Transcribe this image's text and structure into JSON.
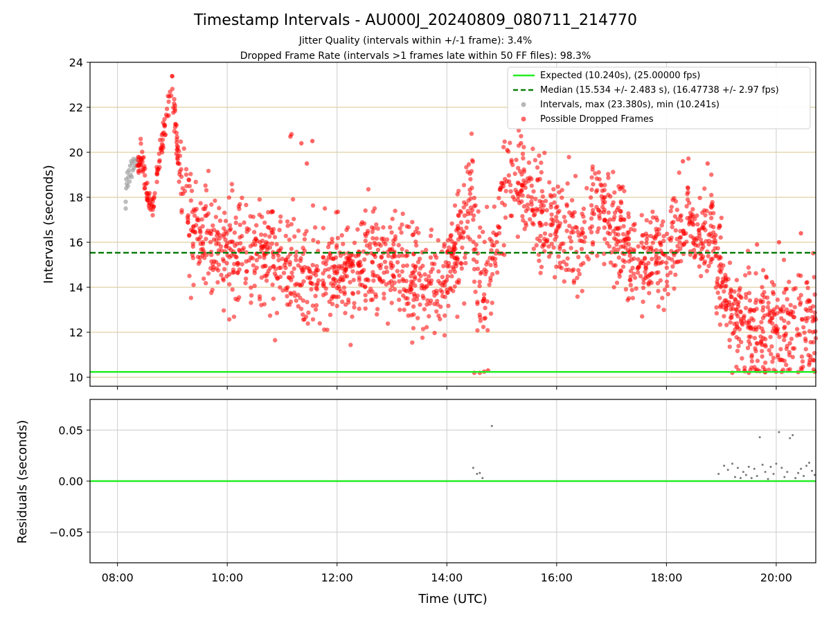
{
  "figure": {
    "title": "Timestamp Intervals - AU000J_20240809_080711_214770",
    "subtitle_1": "Jitter Quality (intervals within +/-1 frame): 3.4%",
    "subtitle_2": "Dropped Frame Rate (intervals >1 frames late within 50 FF files): 98.3%"
  },
  "colors": {
    "expected": "#22ee22",
    "median": "#0a7d0a",
    "intervals": "#999999",
    "dropped": "#ff0000",
    "grid_top": "#d7c38a",
    "grid_bottom": "#cccccc",
    "residual_points": "#777777"
  },
  "chart_data": [
    {
      "type": "scatter",
      "name": "intervals-panel",
      "ylabel": "Intervals (seconds)",
      "xlabel": "",
      "xlim_hours": [
        7.5,
        20.72
      ],
      "ylim": [
        9.6,
        24.0
      ],
      "yticks": [
        10,
        12,
        14,
        16,
        18,
        20,
        22,
        24
      ],
      "xticks_hours": [
        8,
        10,
        12,
        14,
        16,
        18,
        20
      ],
      "grid": true,
      "legend_position": "upper right",
      "reference_lines": [
        {
          "label": "Expected (10.240s), (25.00000 fps)",
          "y": 10.24,
          "style": "solid"
        },
        {
          "label": "Median (15.534 +/- 2.483 s), (16.47738 +/- 2.97 fps)",
          "y": 15.534,
          "style": "dashed"
        }
      ],
      "series": [
        {
          "name": "Intervals, max (23.380s), min (10.241s)",
          "max": 23.38,
          "min": 10.241,
          "points": [
            [
              8.15,
              17.5
            ],
            [
              8.15,
              17.8
            ],
            [
              8.16,
              18.4
            ],
            [
              8.17,
              18.6
            ],
            [
              8.16,
              18.8
            ],
            [
              8.18,
              19.1
            ],
            [
              8.19,
              18.5
            ],
            [
              8.2,
              18.9
            ],
            [
              8.21,
              19.2
            ],
            [
              8.22,
              18.7
            ],
            [
              8.23,
              19.4
            ],
            [
              8.24,
              19.0
            ],
            [
              8.25,
              19.6
            ],
            [
              8.26,
              18.9
            ],
            [
              8.27,
              19.5
            ],
            [
              8.28,
              19.2
            ],
            [
              8.29,
              19.7
            ],
            [
              8.3,
              19.3
            ],
            [
              8.31,
              19.6
            ],
            [
              8.33,
              19.4
            ],
            [
              8.35,
              19.7
            ],
            [
              8.37,
              19.5
            ]
          ]
        },
        {
          "name": "Possible Dropped Frames",
          "trend": [
            [
              8.36,
              19.4
            ],
            [
              8.45,
              19.7
            ],
            [
              8.55,
              18.2
            ],
            [
              8.62,
              17.5
            ],
            [
              8.7,
              18.6
            ],
            [
              8.78,
              20.0
            ],
            [
              8.88,
              21.6
            ],
            [
              9.0,
              22.9
            ],
            [
              9.1,
              19.8
            ],
            [
              9.25,
              17.3
            ],
            [
              9.5,
              16.4
            ],
            [
              9.75,
              16.1
            ],
            [
              10.0,
              15.6
            ],
            [
              10.5,
              15.4
            ],
            [
              11.0,
              15.2
            ],
            [
              11.5,
              14.8
            ],
            [
              12.0,
              14.7
            ],
            [
              12.5,
              14.9
            ],
            [
              13.0,
              15.0
            ],
            [
              13.5,
              14.4
            ],
            [
              13.9,
              13.9
            ],
            [
              14.1,
              15.2
            ],
            [
              14.3,
              16.8
            ],
            [
              14.45,
              17.8
            ],
            [
              14.6,
              13.2
            ],
            [
              14.8,
              14.5
            ],
            [
              15.0,
              17.7
            ],
            [
              15.2,
              18.7
            ],
            [
              15.4,
              18.3
            ],
            [
              15.6,
              17.8
            ],
            [
              15.8,
              16.6
            ],
            [
              16.0,
              16.9
            ],
            [
              16.2,
              16.2
            ],
            [
              16.4,
              15.3
            ],
            [
              16.6,
              17.2
            ],
            [
              16.8,
              17.8
            ],
            [
              17.0,
              17.0
            ],
            [
              17.3,
              15.8
            ],
            [
              17.5,
              14.8
            ],
            [
              17.8,
              15.6
            ],
            [
              18.0,
              15.3
            ],
            [
              18.2,
              16.4
            ],
            [
              18.4,
              17.2
            ],
            [
              18.6,
              16.0
            ],
            [
              18.8,
              16.7
            ],
            [
              19.0,
              14.2
            ],
            [
              19.2,
              13.0
            ],
            [
              19.4,
              12.2
            ],
            [
              19.7,
              12.3
            ],
            [
              20.0,
              12.0
            ],
            [
              20.3,
              12.4
            ],
            [
              20.6,
              12.6
            ]
          ],
          "highlights": [
            [
              11.15,
              20.7
            ],
            [
              11.17,
              20.8
            ],
            [
              11.35,
              20.4
            ],
            [
              11.55,
              20.5
            ],
            [
              11.45,
              19.5
            ],
            [
              14.5,
              10.2
            ],
            [
              14.6,
              10.2
            ],
            [
              14.68,
              10.25
            ],
            [
              14.75,
              10.3
            ],
            [
              19.2,
              10.2
            ],
            [
              19.5,
              10.2
            ],
            [
              19.8,
              10.22
            ],
            [
              20.1,
              10.24
            ],
            [
              20.4,
              10.23
            ],
            [
              20.7,
              10.25
            ],
            [
              15.35,
              20.4
            ],
            [
              15.1,
              20.1
            ],
            [
              18.3,
              19.6
            ],
            [
              18.75,
              19.5
            ],
            [
              19.65,
              15.9
            ],
            [
              20.05,
              16.0
            ],
            [
              20.45,
              16.4
            ]
          ]
        }
      ]
    },
    {
      "type": "scatter",
      "name": "residuals-panel",
      "ylabel": "Residuals (seconds)",
      "xlabel": "Time (UTC)",
      "xlim_hours": [
        7.5,
        20.72
      ],
      "ylim": [
        -0.08,
        0.08
      ],
      "yticks": [
        -0.05,
        0.0,
        0.05
      ],
      "ytick_labels": [
        "−0.05",
        "0.00",
        "0.05"
      ],
      "xticks_hours": [
        8,
        10,
        12,
        14,
        16,
        18,
        20
      ],
      "xtick_labels": [
        "08:00",
        "10:00",
        "12:00",
        "14:00",
        "16:00",
        "18:00",
        "20:00"
      ],
      "zero_line": 0.0,
      "points": [
        [
          14.48,
          0.013
        ],
        [
          14.55,
          0.007
        ],
        [
          14.6,
          0.008
        ],
        [
          14.65,
          0.003
        ],
        [
          14.82,
          0.054
        ],
        [
          18.95,
          0.007
        ],
        [
          19.05,
          0.015
        ],
        [
          19.12,
          0.011
        ],
        [
          19.2,
          0.017
        ],
        [
          19.25,
          0.004
        ],
        [
          19.3,
          0.013
        ],
        [
          19.35,
          0.003
        ],
        [
          19.4,
          0.009
        ],
        [
          19.45,
          0.006
        ],
        [
          19.5,
          0.014
        ],
        [
          19.55,
          0.003
        ],
        [
          19.6,
          0.012
        ],
        [
          19.65,
          0.005
        ],
        [
          19.7,
          0.043
        ],
        [
          19.75,
          0.016
        ],
        [
          19.8,
          0.009
        ],
        [
          19.85,
          0.002
        ],
        [
          19.9,
          0.014
        ],
        [
          19.95,
          0.007
        ],
        [
          20.0,
          0.017
        ],
        [
          20.05,
          0.048
        ],
        [
          20.1,
          0.013
        ],
        [
          20.15,
          0.004
        ],
        [
          20.2,
          0.009
        ],
        [
          20.25,
          0.042
        ],
        [
          20.3,
          0.045
        ],
        [
          20.35,
          0.003
        ],
        [
          20.4,
          0.008
        ],
        [
          20.45,
          0.012
        ],
        [
          20.5,
          0.005
        ],
        [
          20.55,
          0.015
        ],
        [
          20.6,
          0.018
        ],
        [
          20.65,
          0.01
        ],
        [
          20.7,
          0.006
        ]
      ]
    }
  ]
}
